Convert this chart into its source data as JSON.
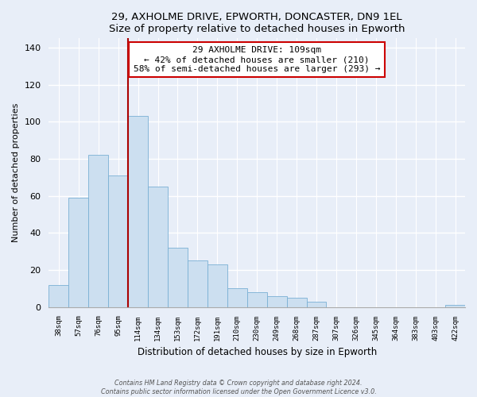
{
  "title1": "29, AXHOLME DRIVE, EPWORTH, DONCASTER, DN9 1EL",
  "title2": "Size of property relative to detached houses in Epworth",
  "xlabel": "Distribution of detached houses by size in Epworth",
  "ylabel": "Number of detached properties",
  "bar_labels": [
    "38sqm",
    "57sqm",
    "76sqm",
    "95sqm",
    "114sqm",
    "134sqm",
    "153sqm",
    "172sqm",
    "191sqm",
    "210sqm",
    "230sqm",
    "249sqm",
    "268sqm",
    "287sqm",
    "307sqm",
    "326sqm",
    "345sqm",
    "364sqm",
    "383sqm",
    "403sqm",
    "422sqm"
  ],
  "bar_values": [
    12,
    59,
    82,
    71,
    103,
    65,
    32,
    25,
    23,
    10,
    8,
    6,
    5,
    3,
    0,
    0,
    0,
    0,
    0,
    0,
    1
  ],
  "bar_color": "#ccdff0",
  "bar_edge_color": "#7ab0d4",
  "ylim": [
    0,
    145
  ],
  "yticks": [
    0,
    20,
    40,
    60,
    80,
    100,
    120,
    140
  ],
  "property_label": "29 AXHOLME DRIVE: 109sqm",
  "annotation_line1": "← 42% of detached houses are smaller (210)",
  "annotation_line2": "58% of semi-detached houses are larger (293) →",
  "vline_x_index": 4,
  "vline_color": "#aa0000",
  "annotation_box_color": "#ffffff",
  "annotation_box_edge": "#cc0000",
  "footer1": "Contains HM Land Registry data © Crown copyright and database right 2024.",
  "footer2": "Contains public sector information licensed under the Open Government Licence v3.0.",
  "background_color": "#e8eef8"
}
